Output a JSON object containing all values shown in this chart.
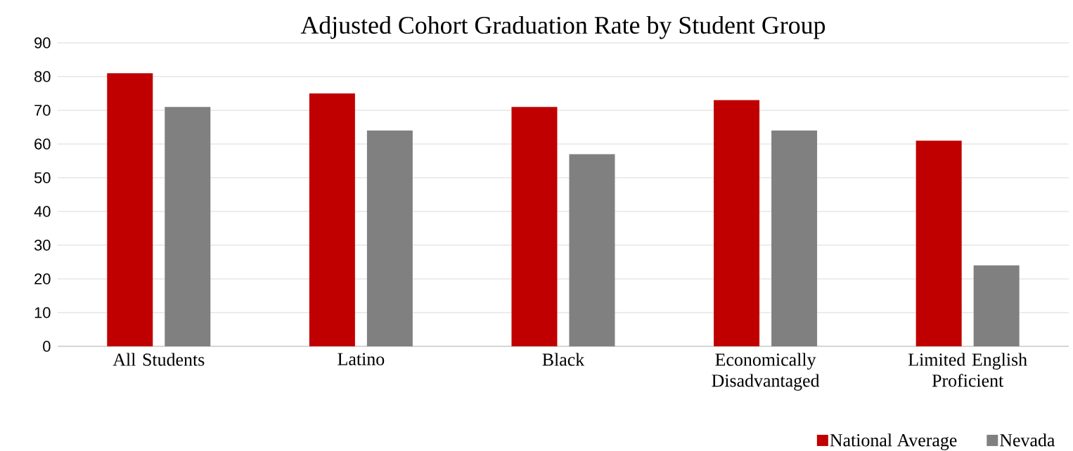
{
  "chart_data": {
    "type": "bar",
    "title": "Adjusted Cohort Graduation Rate by Student Group",
    "categories": [
      "All Students",
      "Latino",
      "Black",
      "Economically Disadvantaged",
      "Limited English Proficient"
    ],
    "series": [
      {
        "name": "National Average",
        "color": "#c00000",
        "values": [
          81,
          75,
          71,
          73,
          61
        ]
      },
      {
        "name": "Nevada",
        "color": "#808080",
        "values": [
          71,
          64,
          57,
          64,
          24
        ]
      }
    ],
    "ylim": [
      0,
      90
    ],
    "yticks": [
      0,
      10,
      20,
      30,
      40,
      50,
      60,
      70,
      80,
      90
    ],
    "grid": "y",
    "legend": "bottom right"
  }
}
